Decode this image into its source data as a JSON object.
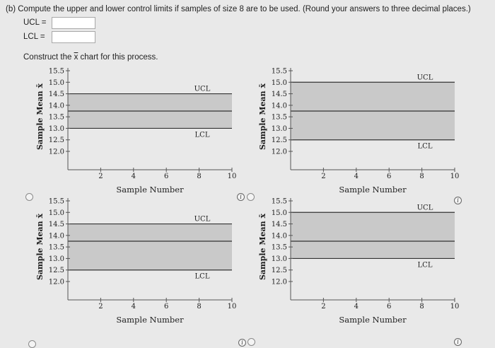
{
  "question": {
    "text": "(b)   Compute the upper and lower control limits if samples of size 8 are to be used. (Round your answers to three decimal places.)"
  },
  "fields": [
    {
      "label": "UCL  =",
      "value": ""
    },
    {
      "label": "LCL  =",
      "value": ""
    }
  ],
  "construct": {
    "prefix": "Construct the ",
    "symbol": "x",
    "suffix": " chart for this process."
  },
  "info_glyph": "i",
  "chart_data": [
    {
      "type": "line",
      "xlabel": "Sample Number",
      "ylabel": "Sample Mean x̄",
      "xticks": [
        2,
        4,
        6,
        8,
        10
      ],
      "yticks": [
        "15.5",
        "15.0",
        "14.5",
        "14.0",
        "13.5",
        "13.0",
        "12.5",
        "12.0"
      ],
      "ylim": [
        12.0,
        15.5
      ],
      "xlim": [
        0,
        10
      ],
      "lines": [
        {
          "name": "UCL",
          "y": 14.5
        },
        {
          "name": "center",
          "y": 13.75
        },
        {
          "name": "LCL",
          "y": 13.0
        }
      ],
      "band_color": "#c9c9c9"
    },
    {
      "type": "line",
      "xlabel": "Sample Number",
      "ylabel": "Sample Mean x̄",
      "xticks": [
        2,
        4,
        6,
        8,
        10
      ],
      "yticks": [
        "15.5",
        "15.0",
        "14.5",
        "14.0",
        "13.5",
        "13.0",
        "12.5",
        "12.0"
      ],
      "ylim": [
        12.0,
        15.5
      ],
      "xlim": [
        0,
        10
      ],
      "lines": [
        {
          "name": "UCL",
          "y": 15.0
        },
        {
          "name": "center",
          "y": 13.75
        },
        {
          "name": "LCL",
          "y": 12.5
        }
      ],
      "band_color": "#c9c9c9"
    },
    {
      "type": "line",
      "xlabel": "Sample Number",
      "ylabel": "Sample Mean x̄",
      "xticks": [
        2,
        4,
        6,
        8,
        10
      ],
      "yticks": [
        "15.5",
        "15.0",
        "14.5",
        "14.0",
        "13.5",
        "13.0",
        "12.5",
        "12.0"
      ],
      "ylim": [
        12.0,
        15.5
      ],
      "xlim": [
        0,
        10
      ],
      "lines": [
        {
          "name": "UCL",
          "y": 14.5
        },
        {
          "name": "center",
          "y": 13.75
        },
        {
          "name": "LCL",
          "y": 12.5
        }
      ],
      "band_color": "#c9c9c9"
    },
    {
      "type": "line",
      "xlabel": "Sample Number",
      "ylabel": "Sample Mean x̄",
      "xticks": [
        2,
        4,
        6,
        8,
        10
      ],
      "yticks": [
        "15.5",
        "15.0",
        "14.5",
        "14.0",
        "13.5",
        "13.0",
        "12.5",
        "12.0"
      ],
      "ylim": [
        12.0,
        15.5
      ],
      "xlim": [
        0,
        10
      ],
      "lines": [
        {
          "name": "UCL",
          "y": 15.0
        },
        {
          "name": "center",
          "y": 13.75
        },
        {
          "name": "LCL",
          "y": 13.0
        }
      ],
      "band_color": "#c9c9c9"
    }
  ]
}
